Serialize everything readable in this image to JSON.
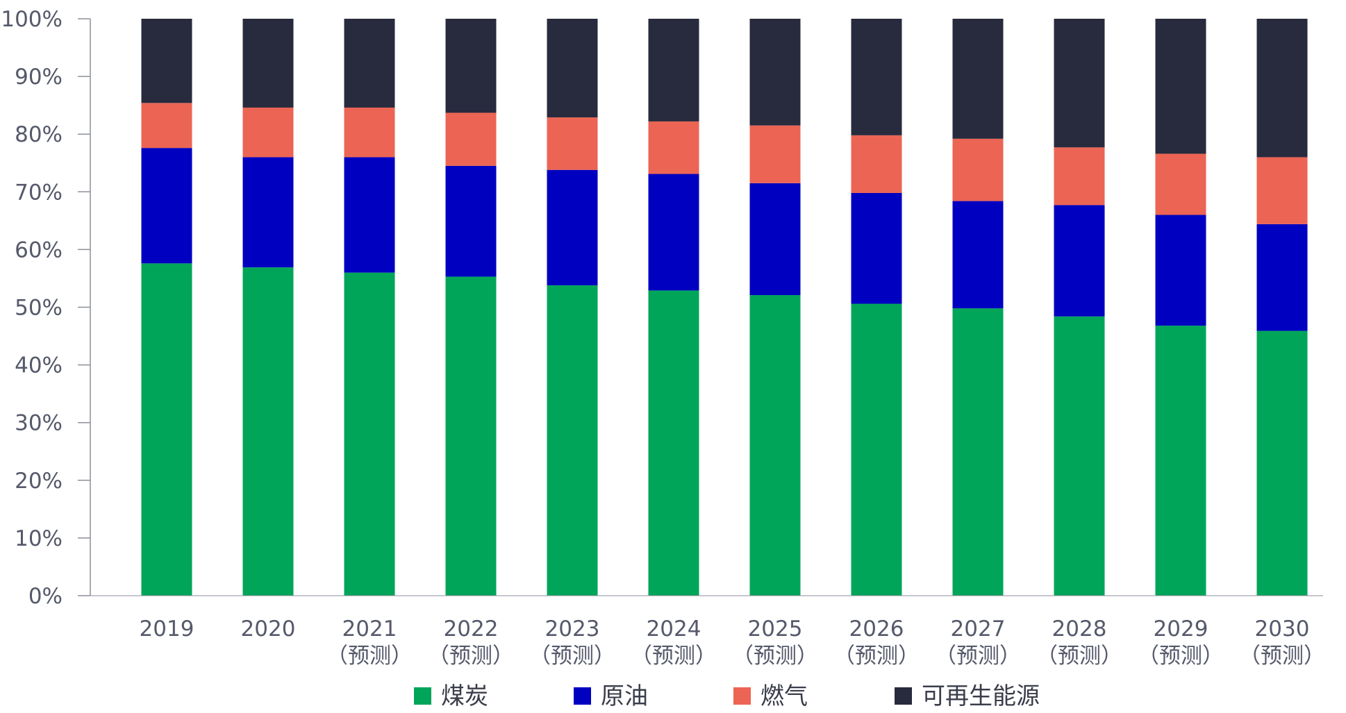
{
  "chart_data": {
    "type": "bar",
    "stacked": true,
    "percent": true,
    "title": "",
    "xlabel": "",
    "ylabel": "",
    "ylim": [
      0,
      100
    ],
    "y_ticks": [
      "0%",
      "10%",
      "20%",
      "30%",
      "40%",
      "50%",
      "60%",
      "70%",
      "80%",
      "90%",
      "100%"
    ],
    "categories": [
      "2019",
      "2020",
      "2021",
      "2022",
      "2023",
      "2024",
      "2025",
      "2026",
      "2027",
      "2028",
      "2029",
      "2030"
    ],
    "category_sublabels": [
      "",
      "",
      "（预测）",
      "（预测）",
      "（预测）",
      "（预测）",
      "（预测）",
      "（预测）",
      "（预测）",
      "（预测）",
      "（预测）",
      "（预测）"
    ],
    "series": [
      {
        "name": "煤炭",
        "color": "#00a55a",
        "values": [
          57.6,
          56.9,
          56.0,
          55.3,
          53.8,
          52.9,
          52.1,
          50.6,
          49.8,
          48.4,
          46.8,
          45.9
        ]
      },
      {
        "name": "原油",
        "color": "#0000c0",
        "values": [
          20.0,
          19.1,
          20.0,
          19.2,
          20.0,
          20.2,
          19.4,
          19.2,
          18.6,
          19.3,
          19.2,
          18.5
        ]
      },
      {
        "name": "燃气",
        "color": "#ec6454",
        "values": [
          7.8,
          8.6,
          8.6,
          9.2,
          9.1,
          9.1,
          10.0,
          10.0,
          10.8,
          10.0,
          10.6,
          11.6
        ]
      },
      {
        "name": "可再生能源",
        "color": "#282b3d",
        "values": [
          14.6,
          15.4,
          15.4,
          16.3,
          17.1,
          17.8,
          18.5,
          20.2,
          20.8,
          22.3,
          23.4,
          24.0
        ]
      }
    ],
    "legend": {
      "position": "bottom"
    },
    "grid": false
  }
}
